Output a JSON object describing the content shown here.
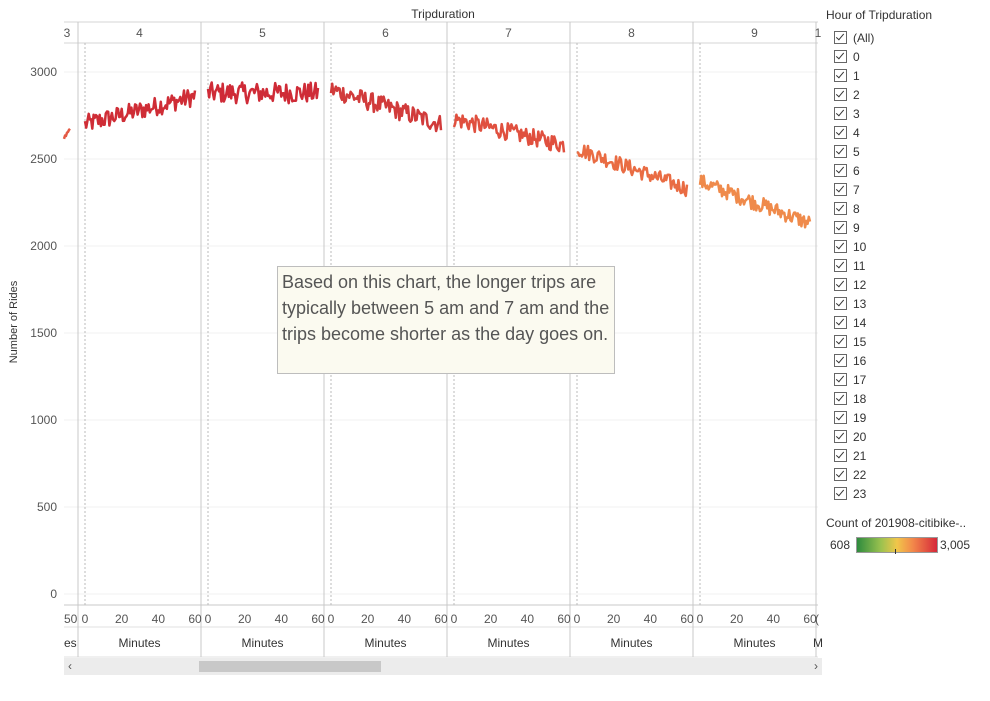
{
  "chart_data": {
    "type": "line",
    "title": "Tripduration",
    "column_field": "Tripduration",
    "xlabel": "Minutes",
    "ylabel": "Number of Rides",
    "ylim": [
      0,
      3150
    ],
    "xlim": [
      0,
      60
    ],
    "y_ticks": [
      "0",
      "500",
      "1000",
      "1500",
      "2000",
      "2500",
      "3000"
    ],
    "x_ticks": [
      "0",
      "20",
      "40",
      "60"
    ],
    "panels": [
      {
        "name": "3",
        "partial": "left",
        "segment": {
          "x_start": 55,
          "x_end": 60,
          "y_start": 2620,
          "y_end": 2670,
          "noise": 15
        }
      },
      {
        "name": "4",
        "segment": {
          "x_start": 0,
          "x_end": 60,
          "y_start": 2700,
          "y_end": 2860,
          "noise": 55
        }
      },
      {
        "name": "5",
        "segment": {
          "x_start": 0,
          "x_end": 60,
          "y_start": 2880,
          "y_end": 2880,
          "noise": 60
        }
      },
      {
        "name": "6",
        "segment": {
          "x_start": 0,
          "x_end": 60,
          "y_start": 2900,
          "y_end": 2700,
          "noise": 55
        }
      },
      {
        "name": "7",
        "segment": {
          "x_start": 0,
          "x_end": 60,
          "y_start": 2730,
          "y_end": 2580,
          "noise": 50
        }
      },
      {
        "name": "8",
        "segment": {
          "x_start": 0,
          "x_end": 60,
          "y_start": 2560,
          "y_end": 2330,
          "noise": 45
        }
      },
      {
        "name": "9",
        "segment": {
          "x_start": 0,
          "x_end": 60,
          "y_start": 2370,
          "y_end": 2130,
          "noise": 45
        }
      },
      {
        "name": "1",
        "partial": "right"
      }
    ],
    "color_scale": {
      "min": 608,
      "max": 3005,
      "min_label": "608",
      "max_label": "3,005"
    },
    "colors": {
      "hour_3": "#e45a45",
      "hour_4": "#cf2d36",
      "hour_5": "#cf2b37",
      "hour_6": "#d13b3b",
      "hour_7": "#e0503f",
      "hour_8": "#e96c43",
      "hour_9": "#ef8a4b"
    },
    "grid": true
  },
  "column_header": {
    "title": "Tripduration",
    "cut_left": "3",
    "cut_right": "1"
  },
  "x_axis": {
    "footer_left_cut": "es",
    "footer_right_cut": "M",
    "first_tick_cut": "50",
    "right_edge_tick_cut": "("
  },
  "legend": {
    "title": "Hour of Tripduration",
    "items": [
      "(All)",
      "0",
      "1",
      "2",
      "3",
      "4",
      "5",
      "6",
      "7",
      "8",
      "9",
      "10",
      "11",
      "12",
      "13",
      "14",
      "15",
      "16",
      "17",
      "18",
      "19",
      "20",
      "21",
      "22",
      "23"
    ]
  },
  "color_legend": {
    "title": "Count of 201908-citibike-..",
    "min_label": "608",
    "max_label": "3,005"
  },
  "annotation": {
    "text": "Based on this chart, the longer trips are typically between 5 am and 7 am and the  trips become  shorter  as the day goes on."
  },
  "scrollbar": {
    "left_arrow": "‹",
    "right_arrow": "›"
  }
}
